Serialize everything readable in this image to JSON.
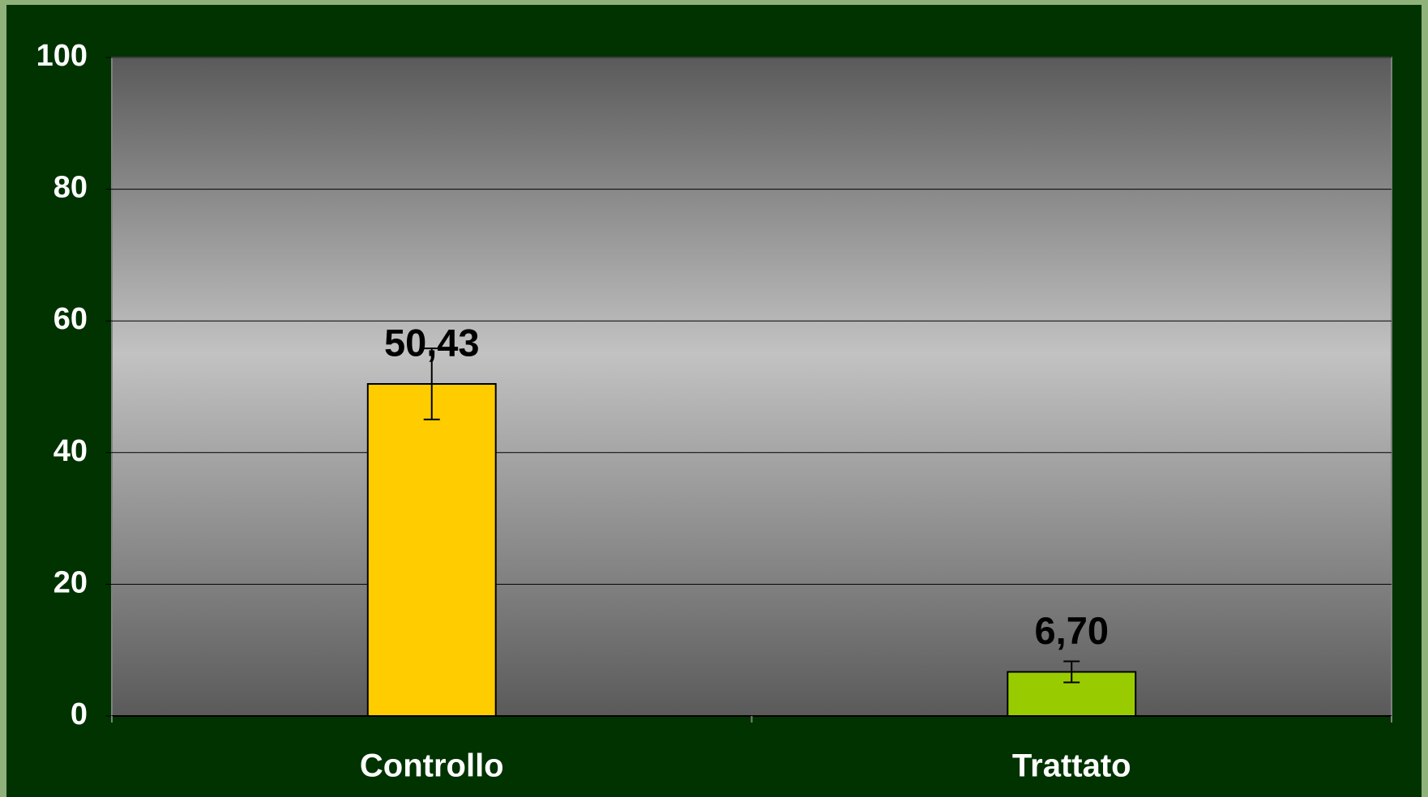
{
  "chart_data": {
    "type": "bar",
    "categories": [
      "Controllo",
      "Trattato"
    ],
    "values": [
      50.43,
      6.7
    ],
    "value_labels": [
      "50,43",
      "6,70"
    ],
    "errors": [
      5.4,
      1.6
    ],
    "colors": [
      "#ffcc00",
      "#99cc00"
    ],
    "ylim": [
      0,
      100
    ],
    "yticks": [
      0,
      20,
      40,
      60,
      80,
      100
    ],
    "grid": true
  }
}
